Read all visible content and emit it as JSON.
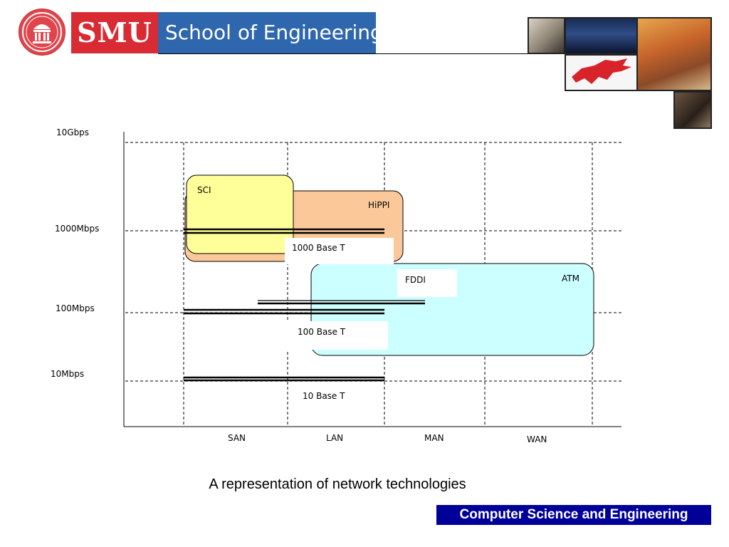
{
  "header": {
    "brand_short": "SMU",
    "brand_long": "School of Engineering",
    "colors": {
      "brand_red": "#d82b34",
      "brand_blue": "#2e67ad"
    },
    "icons": [
      "university-seal-icon",
      "mustang-logo-icon"
    ]
  },
  "diagram": {
    "y_axis_labels": [
      "10Gbps",
      "1000Mbps",
      "100Mbps",
      "10Mbps"
    ],
    "x_axis_labels": [
      "SAN",
      "LAN",
      "MAN",
      "WAN"
    ],
    "regions": {
      "sci": "SCI",
      "hippi": "HiPPI",
      "atm": "ATM",
      "fddi": "FDDI"
    },
    "ethernet": {
      "gigabit": "1000 Base T",
      "fast": "100 Base T",
      "ten": "10 Base T"
    },
    "colors": {
      "sci_fill": "#ffff99",
      "hippi_fill": "#fbc89a",
      "atm_fill": "#ccffff"
    }
  },
  "caption": "A representation of network technologies",
  "footer": {
    "label": "Computer Science and Engineering",
    "color": "#000099"
  }
}
